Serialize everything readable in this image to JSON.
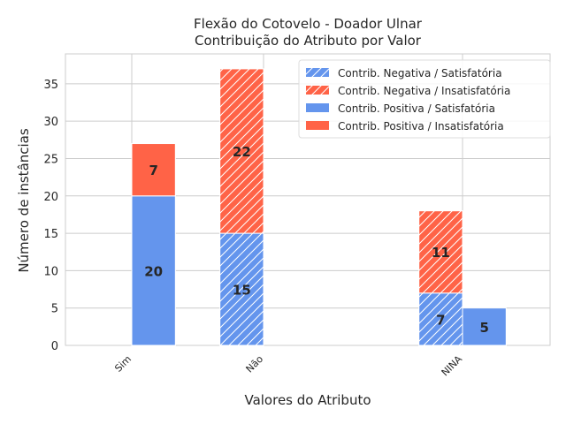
{
  "chart_data": {
    "type": "bar",
    "title": [
      "Flexão do Cotovelo - Doador Ulnar",
      "Contribuição do Atributo por Valor"
    ],
    "xlabel": "Valores do Atributo",
    "ylabel": "Número de instâncias",
    "categories": [
      "Sim",
      "Não",
      "NINA"
    ],
    "ylim": [
      0,
      39
    ],
    "yticks": [
      0,
      5,
      10,
      15,
      20,
      25,
      30,
      35
    ],
    "grid": true,
    "legend_position": "top-right",
    "colors": {
      "satisfatoria": "#6495ED",
      "insatisfatoria": "#FF6347"
    },
    "groups": [
      {
        "name": "Contrib. Positiva",
        "hatched": false,
        "stack": [
          {
            "series": "Contrib. Positiva / Satisfatória",
            "values": [
              20,
              0,
              5
            ]
          },
          {
            "series": "Contrib. Positiva / Insatisfatória",
            "values": [
              7,
              0,
              0
            ]
          }
        ]
      },
      {
        "name": "Contrib. Negativa",
        "hatched": true,
        "stack": [
          {
            "series": "Contrib. Negativa / Satisfatória",
            "values": [
              0,
              15,
              7
            ]
          },
          {
            "series": "Contrib. Negativa / Insatisfatória",
            "values": [
              0,
              22,
              11
            ]
          }
        ]
      }
    ],
    "legend": [
      {
        "label": "Contrib. Negativa / Satisfatória",
        "color": "#6495ED",
        "hatched": true
      },
      {
        "label": "Contrib. Negativa / Insatisfatória",
        "color": "#FF6347",
        "hatched": true
      },
      {
        "label": "Contrib. Positiva / Satisfatória",
        "color": "#6495ED",
        "hatched": false
      },
      {
        "label": "Contrib. Positiva / Insatisfatória",
        "color": "#FF6347",
        "hatched": false
      }
    ]
  }
}
